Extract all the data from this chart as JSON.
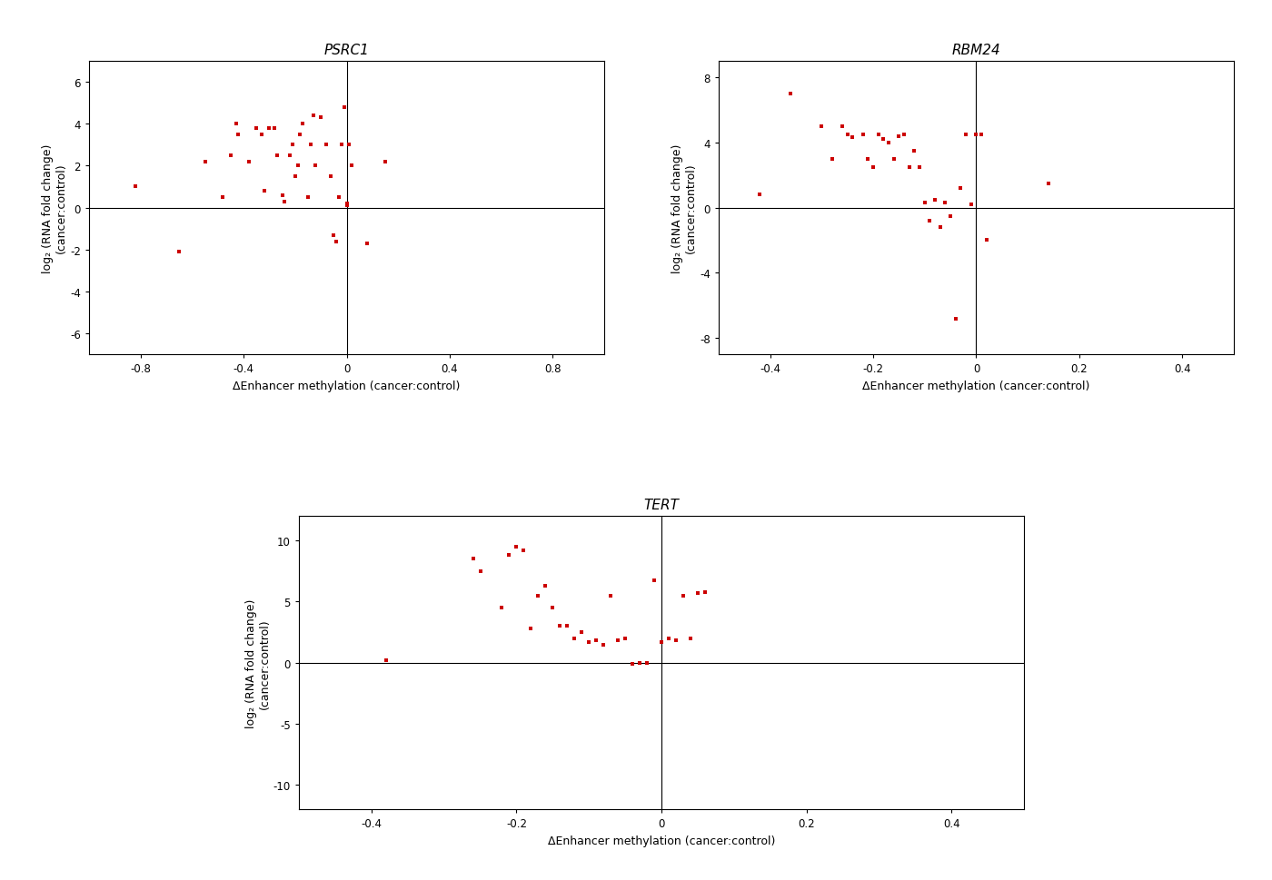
{
  "psrc1": {
    "title": "PSRC1",
    "x": [
      -0.82,
      -0.65,
      -0.55,
      -0.48,
      -0.45,
      -0.43,
      -0.42,
      -0.38,
      -0.35,
      -0.33,
      -0.32,
      -0.3,
      -0.28,
      -0.27,
      -0.25,
      -0.24,
      -0.22,
      -0.21,
      -0.2,
      -0.19,
      -0.18,
      -0.17,
      -0.15,
      -0.14,
      -0.13,
      -0.12,
      -0.1,
      -0.08,
      -0.06,
      -0.05,
      -0.04,
      -0.03,
      -0.02,
      -0.01,
      0.0,
      0.0,
      0.01,
      0.02,
      0.08,
      0.15
    ],
    "y": [
      1.0,
      -2.1,
      2.2,
      0.5,
      2.5,
      4.0,
      3.5,
      2.2,
      3.8,
      3.5,
      0.8,
      3.8,
      3.8,
      2.5,
      0.6,
      0.3,
      2.5,
      3.0,
      1.5,
      2.0,
      3.5,
      4.0,
      0.5,
      3.0,
      4.4,
      2.0,
      4.3,
      3.0,
      1.5,
      -1.3,
      -1.6,
      0.5,
      3.0,
      4.8,
      0.2,
      0.1,
      3.0,
      2.0,
      -1.7,
      2.2
    ],
    "xlim": [
      -1.0,
      1.0
    ],
    "ylim": [
      -7,
      7
    ],
    "xticks": [
      -0.8,
      -0.4,
      0.0,
      0.4,
      0.8
    ],
    "yticks": [
      -6,
      -4,
      -2,
      0,
      2,
      4,
      6
    ]
  },
  "rbm24": {
    "title": "RBM24",
    "x": [
      -0.42,
      -0.36,
      -0.3,
      -0.28,
      -0.26,
      -0.25,
      -0.24,
      -0.22,
      -0.21,
      -0.2,
      -0.19,
      -0.18,
      -0.17,
      -0.16,
      -0.15,
      -0.14,
      -0.13,
      -0.12,
      -0.11,
      -0.1,
      -0.09,
      -0.08,
      -0.07,
      -0.06,
      -0.05,
      -0.04,
      -0.03,
      -0.02,
      -0.01,
      0.0,
      0.01,
      0.02,
      0.14
    ],
    "y": [
      0.8,
      7.0,
      5.0,
      3.0,
      5.0,
      4.5,
      4.3,
      4.5,
      3.0,
      2.5,
      4.5,
      4.2,
      4.0,
      3.0,
      4.4,
      4.5,
      2.5,
      3.5,
      2.5,
      0.3,
      -0.8,
      0.5,
      -1.2,
      0.3,
      -0.5,
      -6.8,
      1.2,
      4.5,
      0.2,
      4.5,
      4.5,
      -2.0,
      1.5
    ],
    "xlim": [
      -0.5,
      0.5
    ],
    "ylim": [
      -9,
      9
    ],
    "xticks": [
      -0.4,
      -0.2,
      0.0,
      0.2,
      0.4
    ],
    "yticks": [
      -8,
      -4,
      0,
      4,
      8
    ]
  },
  "tert": {
    "title": "TERT",
    "x": [
      -0.38,
      -0.26,
      -0.25,
      -0.22,
      -0.21,
      -0.2,
      -0.19,
      -0.18,
      -0.17,
      -0.16,
      -0.15,
      -0.14,
      -0.13,
      -0.12,
      -0.11,
      -0.1,
      -0.09,
      -0.08,
      -0.07,
      -0.06,
      -0.05,
      -0.04,
      -0.03,
      -0.02,
      -0.01,
      0.0,
      0.01,
      0.02,
      0.03,
      0.04,
      0.05,
      0.06
    ],
    "y": [
      0.2,
      8.5,
      7.5,
      4.5,
      8.8,
      9.5,
      9.2,
      2.8,
      5.5,
      6.3,
      4.5,
      3.0,
      3.0,
      2.0,
      2.5,
      1.7,
      1.8,
      1.5,
      5.5,
      1.8,
      2.0,
      -0.1,
      0.0,
      0.0,
      6.7,
      1.7,
      2.0,
      1.8,
      5.5,
      2.0,
      5.7,
      5.8
    ],
    "xlim": [
      -0.5,
      0.5
    ],
    "ylim": [
      -12,
      12
    ],
    "xticks": [
      -0.4,
      -0.2,
      0.0,
      0.2,
      0.4
    ],
    "yticks": [
      -10,
      -5,
      0,
      5,
      10
    ]
  },
  "dot_color": "#cc0000",
  "dot_size": 8,
  "marker": "s",
  "xlabel": "ΔEnhancer methylation (cancer:control)",
  "ylabel": "log₂ (RNA fold change)\n(cancer:control)",
  "background_color": "#ffffff",
  "fig_background": "#ffffff"
}
